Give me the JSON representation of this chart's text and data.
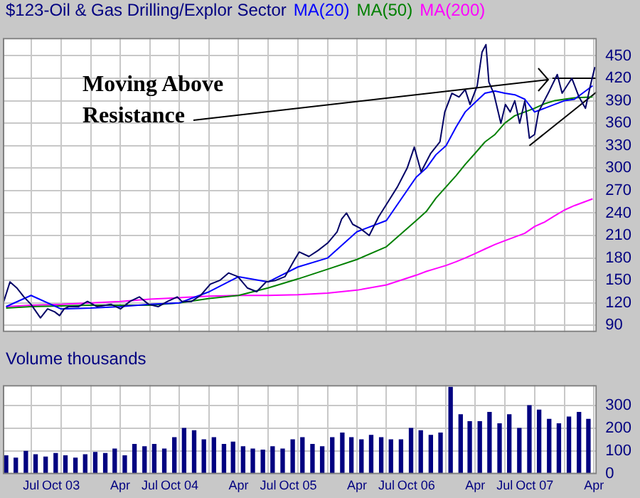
{
  "chart_data": [
    {
      "type": "line",
      "title": "$123-Oil & Gas Drilling/Explor Sector",
      "legend": "top",
      "marker": "none",
      "grid": true,
      "tick_labels": "y",
      "xlim": [
        "2003-04-05",
        "2008-04-10"
      ],
      "ylim": [
        81,
        474
      ],
      "yticks": [
        90,
        120,
        150,
        180,
        210,
        240,
        270,
        300,
        330,
        360,
        390,
        420,
        450
      ],
      "xticks": [
        {
          "value": "2003-07-01",
          "label": null
        },
        {
          "value": "2003-10-01",
          "label": null
        },
        {
          "value": "2004-01-01",
          "label": null
        },
        {
          "value": "2004-04-01",
          "label": null
        },
        {
          "value": "2004-07-01",
          "label": null
        },
        {
          "value": "2004-10-01",
          "label": null
        },
        {
          "value": "2005-01-01",
          "label": null
        },
        {
          "value": "2005-04-01",
          "label": null
        },
        {
          "value": "2005-07-01",
          "label": null
        },
        {
          "value": "2005-10-01",
          "label": null
        },
        {
          "value": "2006-01-01",
          "label": null
        },
        {
          "value": "2006-04-01",
          "label": null
        },
        {
          "value": "2006-07-01",
          "label": null
        },
        {
          "value": "2006-10-01",
          "label": null
        },
        {
          "value": "2007-01-01",
          "label": null
        },
        {
          "value": "2007-04-01",
          "label": null
        },
        {
          "value": "2007-07-01",
          "label": null
        },
        {
          "value": "2007-10-01",
          "label": null
        },
        {
          "value": "2008-01-01",
          "label": null
        },
        {
          "value": "2008-04-01",
          "label": null
        }
      ],
      "annotations": [
        {
          "text": "Moving Above Resistance",
          "x": "2007-11-12",
          "y": 418
        }
      ],
      "x": [
        "2003-04-15",
        "2003-07-01",
        "2003-10-01",
        "2004-01-01",
        "2004-04-01",
        "2004-07-01",
        "2004-10-01",
        "2005-01-01",
        "2005-04-01",
        "2005-07-01",
        "2005-10-01",
        "2006-01-01",
        "2006-04-01",
        "2006-07-01",
        "2006-10-01",
        "2006-11-01",
        "2006-12-01",
        "2007-01-01",
        "2007-02-01",
        "2007-03-01",
        "2007-04-01",
        "2007-05-01",
        "2007-06-01",
        "2007-07-01",
        "2007-08-01",
        "2007-09-01",
        "2007-10-01",
        "2007-11-01",
        "2007-12-01",
        "2008-01-01",
        "2008-02-01",
        "2008-03-28"
      ],
      "series": [
        {
          "color": "#000066",
          "x": [
            "2003-04-05",
            "2003-04-27",
            "2003-05-18",
            "2003-06-09",
            "2003-07-01",
            "2003-07-30",
            "2003-08-21",
            "2003-09-12",
            "2003-09-27",
            "2003-10-11",
            "2003-10-25",
            "2003-11-24",
            "2003-12-22",
            "2004-01-21",
            "2004-03-04",
            "2004-04-02",
            "2004-05-01",
            "2004-05-30",
            "2004-06-28",
            "2004-07-27",
            "2004-08-25",
            "2004-09-24",
            "2004-10-08",
            "2004-11-07",
            "2004-12-05",
            "2005-01-04",
            "2005-02-02",
            "2005-03-01",
            "2005-03-30",
            "2005-04-28",
            "2005-05-27",
            "2005-06-25",
            "2005-07-24",
            "2005-08-22",
            "2005-09-21",
            "2005-10-05",
            "2005-11-04",
            "2005-12-02",
            "2006-01-01",
            "2006-01-30",
            "2006-02-13",
            "2006-02-28",
            "2006-03-19",
            "2006-04-10",
            "2006-05-09",
            "2006-06-07",
            "2006-07-06",
            "2006-08-04",
            "2006-09-03",
            "2006-09-25",
            "2006-10-16",
            "2006-11-15",
            "2006-12-13",
            "2006-12-28",
            "2007-01-19",
            "2007-02-10",
            "2007-03-01",
            "2007-03-16",
            "2007-04-07",
            "2007-04-22",
            "2007-05-04",
            "2007-05-13",
            "2007-05-28",
            "2007-06-19",
            "2007-07-03",
            "2007-07-18",
            "2007-08-01",
            "2007-08-16",
            "2007-09-01",
            "2007-09-15",
            "2007-10-01",
            "2007-10-13",
            "2007-11-12",
            "2007-12-10",
            "2007-12-25",
            "2008-01-24",
            "2008-02-15",
            "2008-03-06",
            "2008-03-21",
            "2008-04-04"
          ],
          "values": [
            118,
            148,
            140,
            128,
            118,
            100,
            112,
            108,
            103,
            112,
            115,
            115,
            122,
            115,
            118,
            112,
            122,
            128,
            118,
            115,
            122,
            128,
            122,
            122,
            130,
            145,
            150,
            160,
            155,
            140,
            135,
            148,
            150,
            155,
            178,
            188,
            182,
            190,
            200,
            215,
            232,
            240,
            225,
            220,
            210,
            235,
            255,
            275,
            300,
            328,
            295,
            320,
            335,
            375,
            400,
            395,
            405,
            385,
            410,
            455,
            465,
            415,
            400,
            360,
            385,
            375,
            390,
            360,
            390,
            340,
            345,
            375,
            400,
            425,
            400,
            420,
            395,
            380,
            410,
            435
          ]
        },
        {
          "name": "MA(20)",
          "color": "#0000ff",
          "values": [
            115,
            130,
            112,
            113,
            115,
            118,
            120,
            135,
            155,
            148,
            168,
            180,
            215,
            230,
            288,
            300,
            318,
            330,
            355,
            375,
            388,
            400,
            403,
            400,
            398,
            392,
            375,
            380,
            385,
            390,
            392,
            410
          ]
        },
        {
          "name": "MA(50)",
          "color": "#008000",
          "values": [
            113,
            115,
            116,
            117,
            117,
            117,
            120,
            126,
            130,
            140,
            152,
            165,
            178,
            195,
            230,
            242,
            260,
            275,
            290,
            305,
            320,
            335,
            345,
            360,
            370,
            375,
            380,
            386,
            390,
            392,
            394,
            395
          ]
        },
        {
          "name": "MA(200)",
          "color": "#ff00ff",
          "values": [
            115,
            117,
            118,
            120,
            122,
            125,
            127,
            129,
            130,
            130,
            131,
            133,
            137,
            144,
            157,
            162,
            166,
            170,
            175,
            180,
            186,
            192,
            198,
            203,
            208,
            213,
            222,
            228,
            236,
            244,
            250,
            259
          ]
        },
        {
          "type": "line",
          "color": "#000000",
          "x": [
            "2007-11-25",
            "2008-04-10"
          ],
          "values": [
            420,
            420
          ]
        },
        {
          "type": "line",
          "color": "#000000",
          "x": [
            "2007-09-15",
            "2008-04-10"
          ],
          "values": [
            330,
            402
          ]
        }
      ]
    },
    {
      "type": "bar",
      "title": "Volume thousands",
      "grid": true,
      "xlim": [
        "2003-04-05",
        "2008-04-10"
      ],
      "ylim": [
        0,
        390
      ],
      "yticks": [
        0,
        100,
        200,
        300
      ],
      "xticks": [
        {
          "value": "2003-07-01",
          "label": "Jul"
        },
        {
          "value": "2003-10-01",
          "label": "Oct 03"
        },
        {
          "value": "2004-01-01",
          "label": null
        },
        {
          "value": "2004-04-01",
          "label": "Apr"
        },
        {
          "value": "2004-07-01",
          "label": "Jul"
        },
        {
          "value": "2004-10-01",
          "label": "Oct 04"
        },
        {
          "value": "2005-01-01",
          "label": null
        },
        {
          "value": "2005-04-01",
          "label": "Apr"
        },
        {
          "value": "2005-07-01",
          "label": "Jul"
        },
        {
          "value": "2005-10-01",
          "label": "Oct 05"
        },
        {
          "value": "2006-01-01",
          "label": null
        },
        {
          "value": "2006-04-01",
          "label": "Apr"
        },
        {
          "value": "2006-07-01",
          "label": "Jul"
        },
        {
          "value": "2006-10-01",
          "label": "Oct 06"
        },
        {
          "value": "2007-01-01",
          "label": null
        },
        {
          "value": "2007-04-01",
          "label": "Apr"
        },
        {
          "value": "2007-07-01",
          "label": "Jul"
        },
        {
          "value": "2007-10-01",
          "label": "Oct 07"
        },
        {
          "value": "2008-01-01",
          "label": null
        },
        {
          "value": "2008-04-01",
          "label": "Apr"
        }
      ],
      "x": [
        "2003-04-15",
        "2003-05-15",
        "2003-06-15",
        "2003-07-15",
        "2003-08-15",
        "2003-09-15",
        "2003-10-15",
        "2003-11-15",
        "2003-12-15",
        "2004-01-15",
        "2004-02-15",
        "2004-03-15",
        "2004-04-15",
        "2004-05-15",
        "2004-06-15",
        "2004-07-15",
        "2004-08-15",
        "2004-09-15",
        "2004-10-15",
        "2004-11-15",
        "2004-12-15",
        "2005-01-15",
        "2005-02-15",
        "2005-03-15",
        "2005-04-15",
        "2005-05-15",
        "2005-06-15",
        "2005-07-15",
        "2005-08-15",
        "2005-09-15",
        "2005-10-15",
        "2005-11-15",
        "2005-12-15",
        "2006-01-15",
        "2006-02-15",
        "2006-03-15",
        "2006-04-15",
        "2006-05-15",
        "2006-06-15",
        "2006-07-15",
        "2006-08-15",
        "2006-09-15",
        "2006-10-15",
        "2006-11-15",
        "2006-12-15",
        "2007-01-15",
        "2007-02-15",
        "2007-03-15",
        "2007-04-15",
        "2007-05-15",
        "2007-06-15",
        "2007-07-15",
        "2007-08-15",
        "2007-09-15",
        "2007-10-15",
        "2007-11-15",
        "2007-12-15",
        "2008-01-15",
        "2008-02-15",
        "2008-03-15"
      ],
      "series": [
        {
          "color": "#000080",
          "values": [
            80,
            70,
            100,
            85,
            75,
            90,
            80,
            70,
            85,
            95,
            90,
            110,
            80,
            130,
            120,
            130,
            110,
            160,
            200,
            190,
            150,
            160,
            130,
            140,
            120,
            110,
            105,
            120,
            110,
            150,
            160,
            130,
            120,
            160,
            180,
            160,
            150,
            170,
            160,
            150,
            150,
            200,
            190,
            170,
            180,
            380,
            260,
            230,
            230,
            270,
            220,
            260,
            200,
            300,
            280,
            240,
            220,
            250,
            270,
            240
          ]
        }
      ]
    }
  ]
}
